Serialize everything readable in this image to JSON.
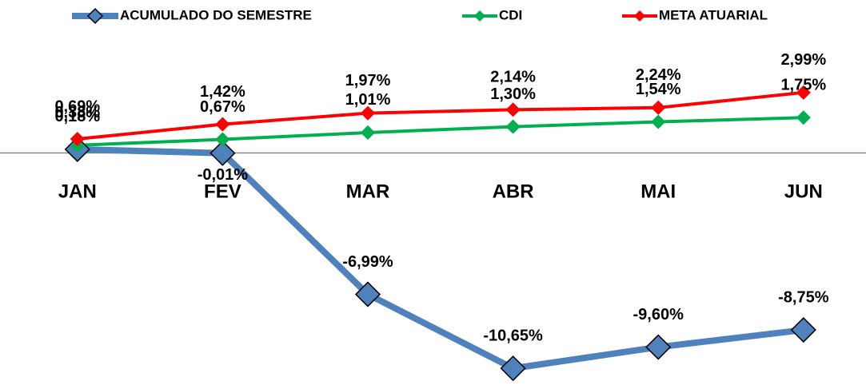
{
  "chart_data": {
    "type": "line",
    "categories": [
      "JAN",
      "FEV",
      "MAR",
      "ABR",
      "MAI",
      "JUN"
    ],
    "series": [
      {
        "name": "ACUMULADO DO SEMESTRE",
        "color": "#4f81bd",
        "values": [
          0.18,
          -0.01,
          -6.99,
          -10.65,
          -9.6,
          -8.75
        ],
        "value_labels": [
          "0,18%",
          "-0,01%",
          "-6,99%",
          "-10,65%",
          "-9,60%",
          "-8,75%"
        ]
      },
      {
        "name": "CDI",
        "color": "#00b050",
        "values": [
          0.38,
          0.67,
          1.01,
          1.3,
          1.54,
          1.75
        ],
        "value_labels": [
          "0,38%",
          "0,67%",
          "1,01%",
          "1,30%",
          "1,54%",
          "1,75%"
        ]
      },
      {
        "name": "META ATUARIAL",
        "color": "#ff0000",
        "values": [
          0.69,
          1.42,
          1.97,
          2.14,
          2.24,
          2.99
        ],
        "value_labels": [
          "0,69%",
          "1,42%",
          "1,97%",
          "2,14%",
          "2,24%",
          "2,99%"
        ]
      }
    ],
    "ylim": [
      -11,
      4.8
    ]
  }
}
